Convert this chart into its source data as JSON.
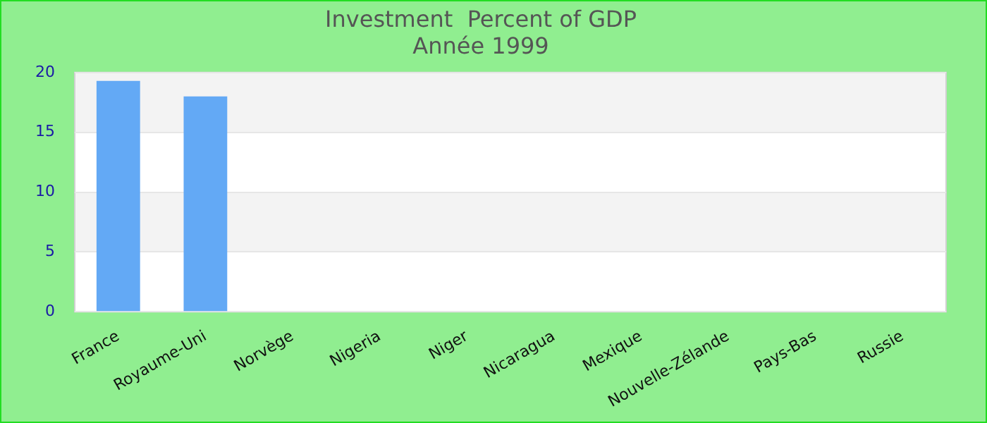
{
  "chart_data": {
    "type": "bar",
    "title": "Investment  Percent of GDP",
    "subtitle": "Année 1999",
    "categories": [
      "France",
      "Royaume-Uni",
      "Norvège",
      "Nigeria",
      "Niger",
      "Nicaragua",
      "Mexique",
      "Nouvelle-Zélande",
      "Pays-Bas",
      "Russie"
    ],
    "values": [
      19.3,
      18.0,
      null,
      null,
      null,
      null,
      null,
      null,
      null,
      null
    ],
    "color": "#63a9f5",
    "ylim": [
      0,
      20
    ],
    "yticks": [
      0,
      5,
      10,
      15,
      20
    ],
    "grid": "y",
    "legend": false
  }
}
